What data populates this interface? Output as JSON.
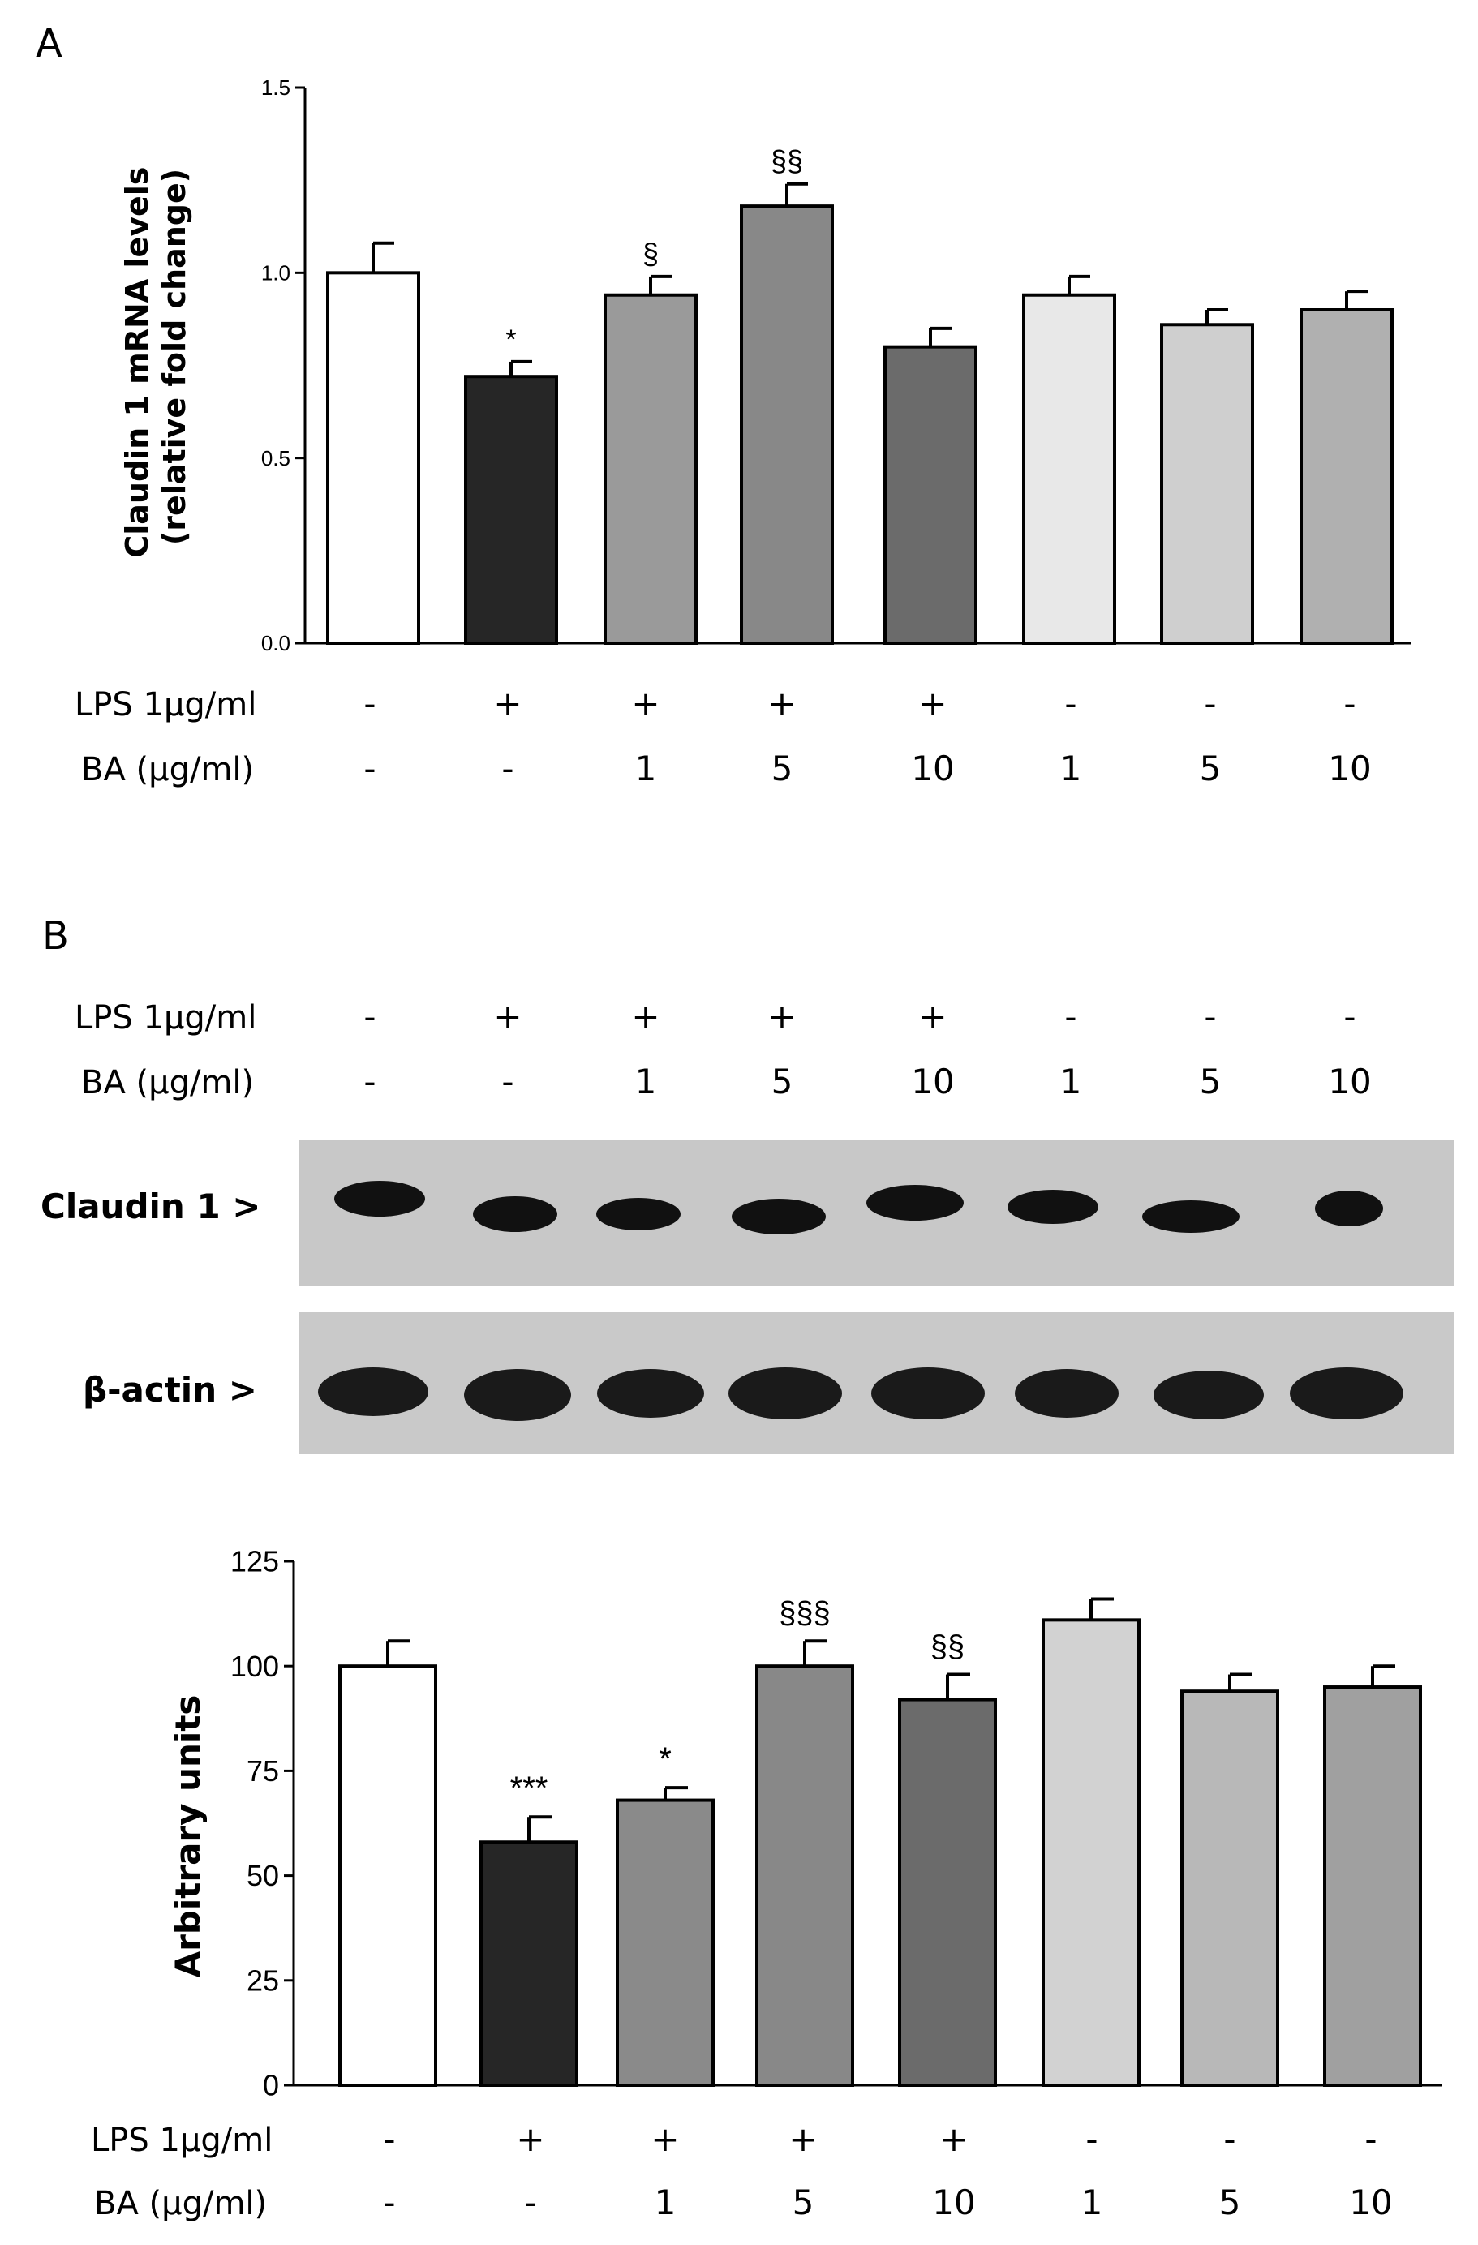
{
  "panels": {
    "a": {
      "letter": "A"
    },
    "b": {
      "letter": "B"
    }
  },
  "conditions": {
    "row1_label": "LPS 1µg/ml",
    "row2_label": "BA (µg/ml)",
    "lps": [
      "-",
      "+",
      "+",
      "+",
      "+",
      "-",
      "-",
      "-"
    ],
    "ba": [
      "-",
      "-",
      "1",
      "5",
      "10",
      "1",
      "5",
      "10"
    ]
  },
  "blot": {
    "claudin_label": "Claudin 1 >",
    "actin_label": "β-actin >"
  },
  "chart_data": [
    {
      "type": "bar",
      "panel": "A",
      "categories": [
        "1",
        "2",
        "3",
        "4",
        "5",
        "6",
        "7",
        "8"
      ],
      "values": [
        1.0,
        0.72,
        0.94,
        1.18,
        0.8,
        0.94,
        0.86,
        0.9
      ],
      "errors": [
        0.08,
        0.04,
        0.05,
        0.06,
        0.05,
        0.05,
        0.04,
        0.05
      ],
      "significance": [
        "",
        "*",
        "§",
        "§§",
        "",
        "",
        "",
        ""
      ],
      "bar_colors": [
        "#ffffff",
        "#262626",
        "#9a9a9a",
        "#888888",
        "#6b6b6b",
        "#e8e8e8",
        "#cfcfcf",
        "#b0b0b0"
      ],
      "ylabel": "Claudin 1 mRNA levels\n(relative fold change)",
      "ylabel_lines": [
        "Claudin 1 mRNA levels",
        "(relative fold change)"
      ],
      "ylim": [
        0,
        1.5
      ],
      "yticks": [
        "0.0",
        "0.5",
        "1.0",
        "1.5"
      ],
      "grid": false
    },
    {
      "type": "bar",
      "panel": "B",
      "categories": [
        "1",
        "2",
        "3",
        "4",
        "5",
        "6",
        "7",
        "8"
      ],
      "values": [
        100,
        58,
        68,
        100,
        92,
        111,
        94,
        95
      ],
      "errors": [
        6,
        6,
        3,
        6,
        6,
        5,
        4,
        5
      ],
      "significance": [
        "",
        "***",
        "*",
        "§§§",
        "§§",
        "",
        "",
        ""
      ],
      "bar_colors": [
        "#ffffff",
        "#262626",
        "#8a8a8a",
        "#888888",
        "#6b6b6b",
        "#d2d2d2",
        "#b8b8b8",
        "#a0a0a0"
      ],
      "ylabel": "Arbitrary units",
      "ylim": [
        0,
        125
      ],
      "yticks": [
        "0",
        "25",
        "50",
        "75",
        "100",
        "125"
      ],
      "grid": false
    }
  ]
}
